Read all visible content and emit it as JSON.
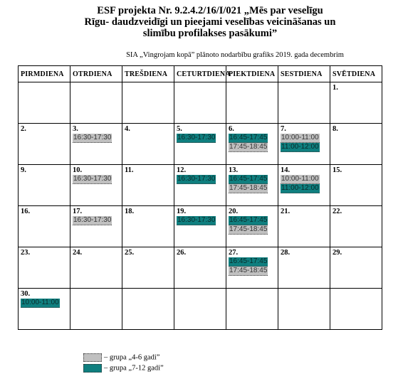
{
  "title": {
    "line1": "ESF projekta Nr. 9.2.4.2/16/I/021 „Mēs par veselīgu",
    "line2": "Rīgu- daudzveidīgi un pieejami  veselības veicināšanas un",
    "line3": "slimību profilakses pasākumi”"
  },
  "subtitle": "SIA „Vingrojam kopā” plānoto nodarbību grafiks 2019. gada decembrim",
  "weekdays": [
    "PIRMDIENA",
    "OTRDIENA",
    "TREŠDIENA",
    "CETURTDIENA",
    "PIEKTDIENA",
    "SESTDIENA",
    "SVĒTDIENA"
  ],
  "weeks": [
    [
      {
        "day": "",
        "slots": []
      },
      {
        "day": "",
        "slots": []
      },
      {
        "day": "",
        "slots": []
      },
      {
        "day": "",
        "slots": []
      },
      {
        "day": "",
        "slots": []
      },
      {
        "day": "",
        "slots": []
      },
      {
        "day": "1.",
        "slots": []
      }
    ],
    [
      {
        "day": "2.",
        "slots": []
      },
      {
        "day": "3.",
        "slots": [
          {
            "time": "16:30-17:30",
            "group": "gray"
          }
        ]
      },
      {
        "day": "4.",
        "slots": []
      },
      {
        "day": "5.",
        "slots": [
          {
            "time": "16:30-17:30",
            "group": "teal"
          }
        ]
      },
      {
        "day": "6.",
        "slots": [
          {
            "time": "16:45-17:45",
            "group": "teal"
          },
          {
            "time": "17:45-18:45",
            "group": "gray"
          }
        ]
      },
      {
        "day": "7.",
        "slots": [
          {
            "time": "10:00-11:00",
            "group": "gray"
          },
          {
            "time": "11:00-12:00",
            "group": "teal"
          }
        ]
      },
      {
        "day": "8.",
        "slots": []
      }
    ],
    [
      {
        "day": "9.",
        "slots": []
      },
      {
        "day": "10.",
        "slots": [
          {
            "time": "16:30-17:30",
            "group": "gray"
          }
        ]
      },
      {
        "day": "11.",
        "slots": []
      },
      {
        "day": "12.",
        "slots": [
          {
            "time": "16:30-17:30",
            "group": "teal"
          }
        ]
      },
      {
        "day": "13.",
        "slots": [
          {
            "time": "16:45-17:45",
            "group": "teal"
          },
          {
            "time": "17:45-18:45",
            "group": "gray"
          }
        ]
      },
      {
        "day": "14.",
        "slots": [
          {
            "time": "10:00-11:00",
            "group": "gray"
          },
          {
            "time": "11:00-12:00",
            "group": "teal"
          }
        ]
      },
      {
        "day": "15.",
        "slots": []
      }
    ],
    [
      {
        "day": "16.",
        "slots": []
      },
      {
        "day": "17.",
        "slots": [
          {
            "time": "16:30-17:30",
            "group": "gray"
          }
        ]
      },
      {
        "day": "18.",
        "slots": []
      },
      {
        "day": "19.",
        "slots": [
          {
            "time": "16:30-17:30",
            "group": "teal"
          }
        ]
      },
      {
        "day": "20.",
        "slots": [
          {
            "time": "16:45-17:45",
            "group": "teal"
          },
          {
            "time": "17:45-18:45",
            "group": "gray"
          }
        ]
      },
      {
        "day": "21.",
        "slots": []
      },
      {
        "day": "22.",
        "slots": []
      }
    ],
    [
      {
        "day": "23.",
        "slots": []
      },
      {
        "day": "24.",
        "slots": []
      },
      {
        "day": "25.",
        "slots": []
      },
      {
        "day": "26.",
        "slots": []
      },
      {
        "day": "27.",
        "slots": [
          {
            "time": "16:45-17:45",
            "group": "teal"
          },
          {
            "time": "17:45-18:45",
            "group": "gray"
          }
        ]
      },
      {
        "day": "28.",
        "slots": []
      },
      {
        "day": "29.",
        "slots": []
      }
    ],
    [
      {
        "day": "30.",
        "slots": [
          {
            "time": "10:00-11:00",
            "group": "teal"
          }
        ]
      },
      {
        "day": "",
        "slots": []
      },
      {
        "day": "",
        "slots": []
      },
      {
        "day": "",
        "slots": []
      },
      {
        "day": "",
        "slots": []
      },
      {
        "day": "",
        "slots": []
      },
      {
        "day": "",
        "slots": []
      }
    ]
  ],
  "legend": [
    {
      "label": "– grupa „4-6 gadi”",
      "group": "gray"
    },
    {
      "label": "– grupa „7-12 gadi”",
      "group": "teal"
    }
  ],
  "colors": {
    "gray": "#c0c0c0",
    "teal": "#0f7f7f"
  }
}
